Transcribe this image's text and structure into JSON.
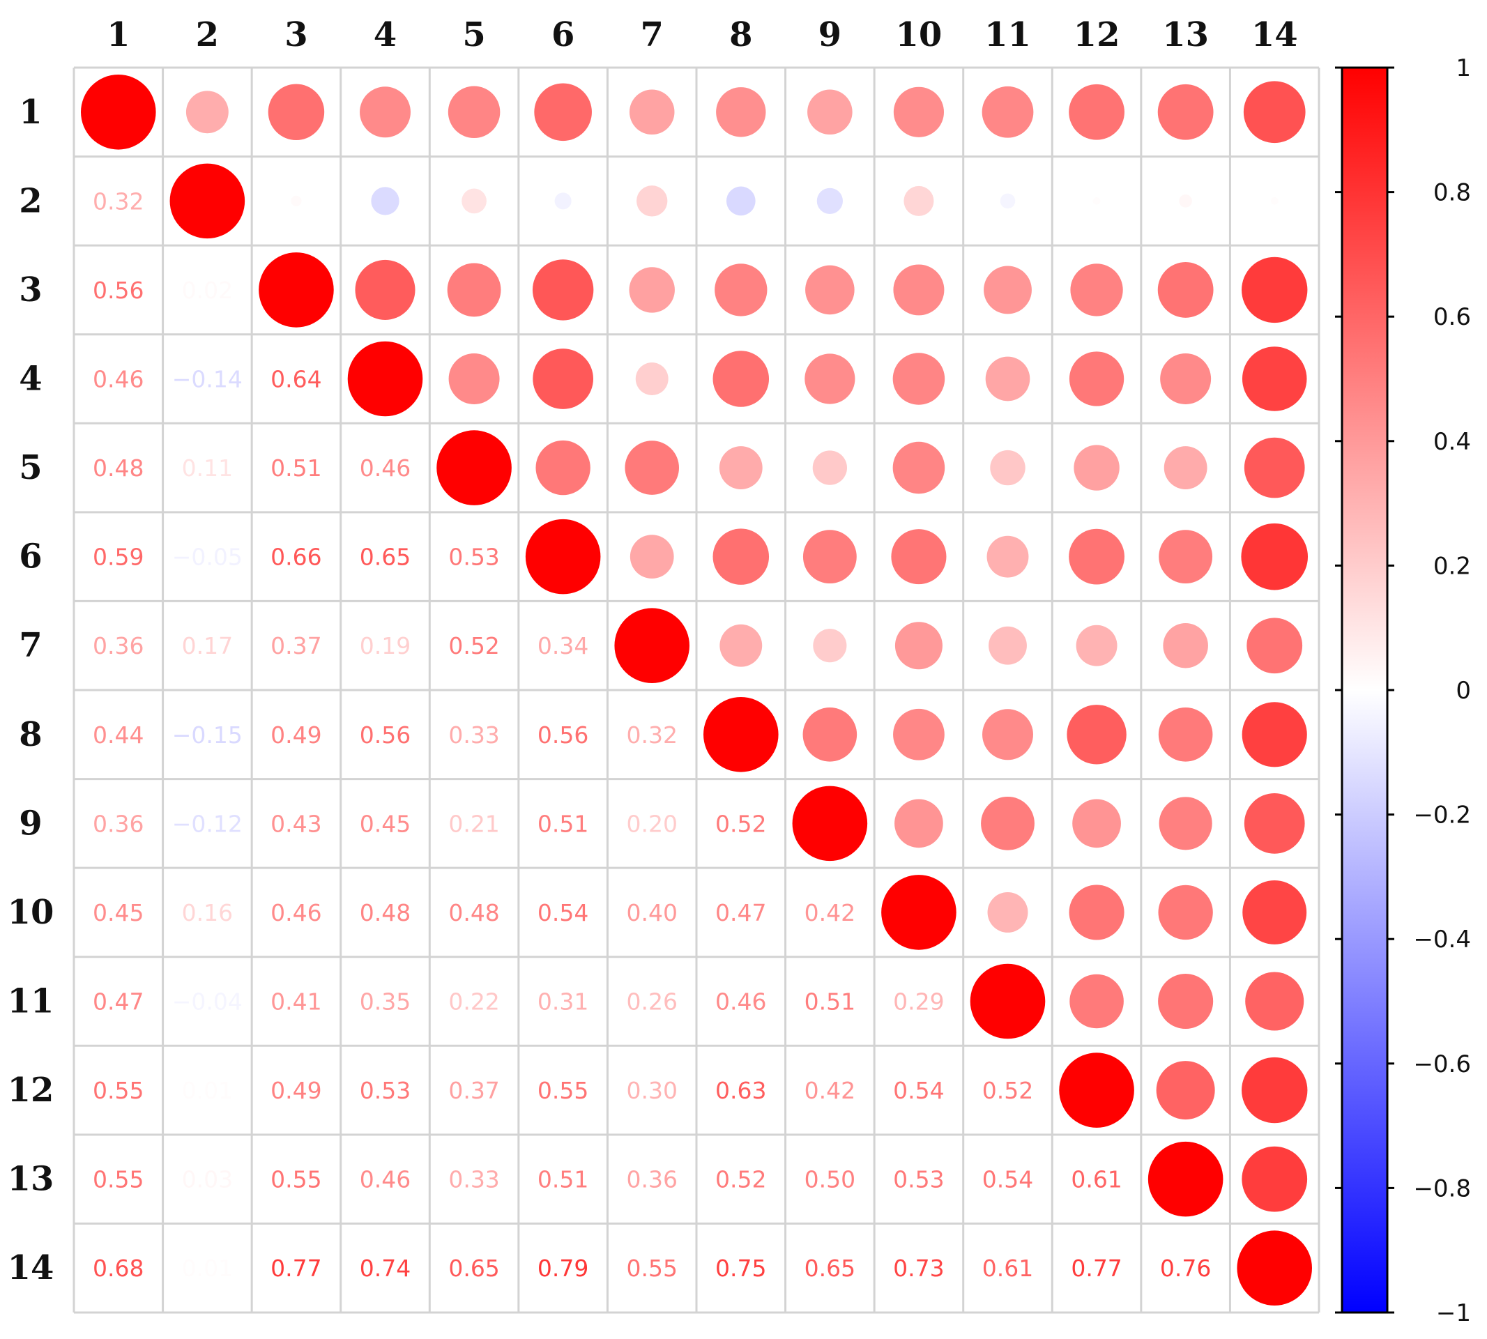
{
  "chart_data": {
    "type": "heatmap",
    "subtype": "correlation-matrix-mixed",
    "lower_triangle": "numbers",
    "upper_triangle": "circles",
    "labels": [
      "1",
      "2",
      "3",
      "4",
      "5",
      "6",
      "7",
      "8",
      "9",
      "10",
      "11",
      "12",
      "13",
      "14"
    ],
    "matrix": [
      [
        1,
        0.32,
        0.56,
        0.46,
        0.48,
        0.59,
        0.36,
        0.44,
        0.36,
        0.45,
        0.47,
        0.55,
        0.55,
        0.68
      ],
      [
        0.32,
        1,
        0.02,
        -0.14,
        0.11,
        -0.05,
        0.17,
        -0.15,
        -0.12,
        0.16,
        -0.04,
        0.01,
        0.03,
        0.01
      ],
      [
        0.56,
        0.02,
        1,
        0.64,
        0.51,
        0.66,
        0.37,
        0.49,
        0.43,
        0.46,
        0.41,
        0.49,
        0.55,
        0.77
      ],
      [
        0.46,
        -0.14,
        0.64,
        1,
        0.46,
        0.65,
        0.19,
        0.56,
        0.45,
        0.48,
        0.35,
        0.53,
        0.46,
        0.74
      ],
      [
        0.48,
        0.11,
        0.51,
        0.46,
        1,
        0.53,
        0.52,
        0.33,
        0.21,
        0.48,
        0.22,
        0.37,
        0.33,
        0.65
      ],
      [
        0.59,
        -0.05,
        0.66,
        0.65,
        0.53,
        1,
        0.34,
        0.56,
        0.51,
        0.54,
        0.31,
        0.55,
        0.51,
        0.79
      ],
      [
        0.36,
        0.17,
        0.37,
        0.19,
        0.52,
        0.34,
        1,
        0.32,
        0.2,
        0.4,
        0.26,
        0.3,
        0.36,
        0.55
      ],
      [
        0.44,
        -0.15,
        0.49,
        0.56,
        0.33,
        0.56,
        0.32,
        1,
        0.52,
        0.47,
        0.46,
        0.63,
        0.52,
        0.75
      ],
      [
        0.36,
        -0.12,
        0.43,
        0.45,
        0.21,
        0.51,
        0.2,
        0.52,
        1,
        0.42,
        0.51,
        0.42,
        0.5,
        0.65
      ],
      [
        0.45,
        0.16,
        0.46,
        0.48,
        0.48,
        0.54,
        0.4,
        0.47,
        0.42,
        1,
        0.29,
        0.54,
        0.53,
        0.73
      ],
      [
        0.47,
        -0.04,
        0.41,
        0.35,
        0.22,
        0.31,
        0.26,
        0.46,
        0.51,
        0.29,
        1,
        0.52,
        0.54,
        0.61
      ],
      [
        0.55,
        0.01,
        0.49,
        0.53,
        0.37,
        0.55,
        0.3,
        0.63,
        0.42,
        0.54,
        0.52,
        1,
        0.61,
        0.77
      ],
      [
        0.55,
        0.03,
        0.55,
        0.46,
        0.33,
        0.51,
        0.36,
        0.52,
        0.5,
        0.53,
        0.54,
        0.61,
        1,
        0.76
      ],
      [
        0.68,
        0.01,
        0.77,
        0.74,
        0.65,
        0.79,
        0.55,
        0.75,
        0.65,
        0.73,
        0.61,
        0.77,
        0.76,
        1
      ]
    ],
    "display_values": [
      [
        "",
        "",
        "",
        "",
        "",
        "",
        "",
        "",
        "",
        "",
        "",
        "",
        "",
        ""
      ],
      [
        "0.32",
        "",
        "",
        "",
        "",
        "",
        "",
        "",
        "",
        "",
        "",
        "",
        "",
        ""
      ],
      [
        "0.56",
        "0.02",
        "",
        "",
        "",
        "",
        "",
        "",
        "",
        "",
        "",
        "",
        "",
        ""
      ],
      [
        "0.46",
        "−0.14",
        "0.64",
        "",
        "",
        "",
        "",
        "",
        "",
        "",
        "",
        "",
        "",
        ""
      ],
      [
        "0.48",
        "0.11",
        "0.51",
        "0.46",
        "",
        "",
        "",
        "",
        "",
        "",
        "",
        "",
        "",
        ""
      ],
      [
        "0.59",
        "−0.05",
        "0.66",
        "0.65",
        "0.53",
        "",
        "",
        "",
        "",
        "",
        "",
        "",
        "",
        ""
      ],
      [
        "0.36",
        "0.17",
        "0.37",
        "0.19",
        "0.52",
        "0.34",
        "",
        "",
        "",
        "",
        "",
        "",
        "",
        ""
      ],
      [
        "0.44",
        "−0.15",
        "0.49",
        "0.56",
        "0.33",
        "0.56",
        "0.32",
        "",
        "",
        "",
        "",
        "",
        "",
        ""
      ],
      [
        "0.36",
        "−0.12",
        "0.43",
        "0.45",
        "0.21",
        "0.51",
        "0.20",
        "0.52",
        "",
        "",
        "",
        "",
        "",
        ""
      ],
      [
        "0.45",
        "0.16",
        "0.46",
        "0.48",
        "0.48",
        "0.54",
        "0.40",
        "0.47",
        "0.42",
        "",
        "",
        "",
        "",
        ""
      ],
      [
        "0.47",
        "−0.04",
        "0.41",
        "0.35",
        "0.22",
        "0.31",
        "0.26",
        "0.46",
        "0.51",
        "0.29",
        "",
        "",
        "",
        ""
      ],
      [
        "0.55",
        "0.01",
        "0.49",
        "0.53",
        "0.37",
        "0.55",
        "0.30",
        "0.63",
        "0.42",
        "0.54",
        "0.52",
        "",
        "",
        ""
      ],
      [
        "0.55",
        "0.03",
        "0.55",
        "0.46",
        "0.33",
        "0.51",
        "0.36",
        "0.52",
        "0.50",
        "0.53",
        "0.54",
        "0.61",
        "",
        ""
      ],
      [
        "0.68",
        "0.01",
        "0.77",
        "0.74",
        "0.65",
        "0.79",
        "0.55",
        "0.75",
        "0.65",
        "0.73",
        "0.61",
        "0.77",
        "0.76",
        ""
      ]
    ],
    "colorbar": {
      "range": [
        -1,
        1
      ],
      "ticks": [
        1,
        0.8,
        0.6,
        0.4,
        0.2,
        0,
        -0.2,
        -0.4,
        -0.6,
        -0.8,
        -1
      ],
      "tick_labels": [
        "1",
        "0.8",
        "0.6",
        "0.4",
        "0.2",
        "0",
        "−0.2",
        "−0.4",
        "−0.6",
        "−0.8",
        "−1"
      ],
      "colors": {
        "negative": "#0000ff",
        "zero": "#ffffff",
        "positive": "#ff0000"
      }
    },
    "grid": true,
    "legend_position": "right"
  }
}
